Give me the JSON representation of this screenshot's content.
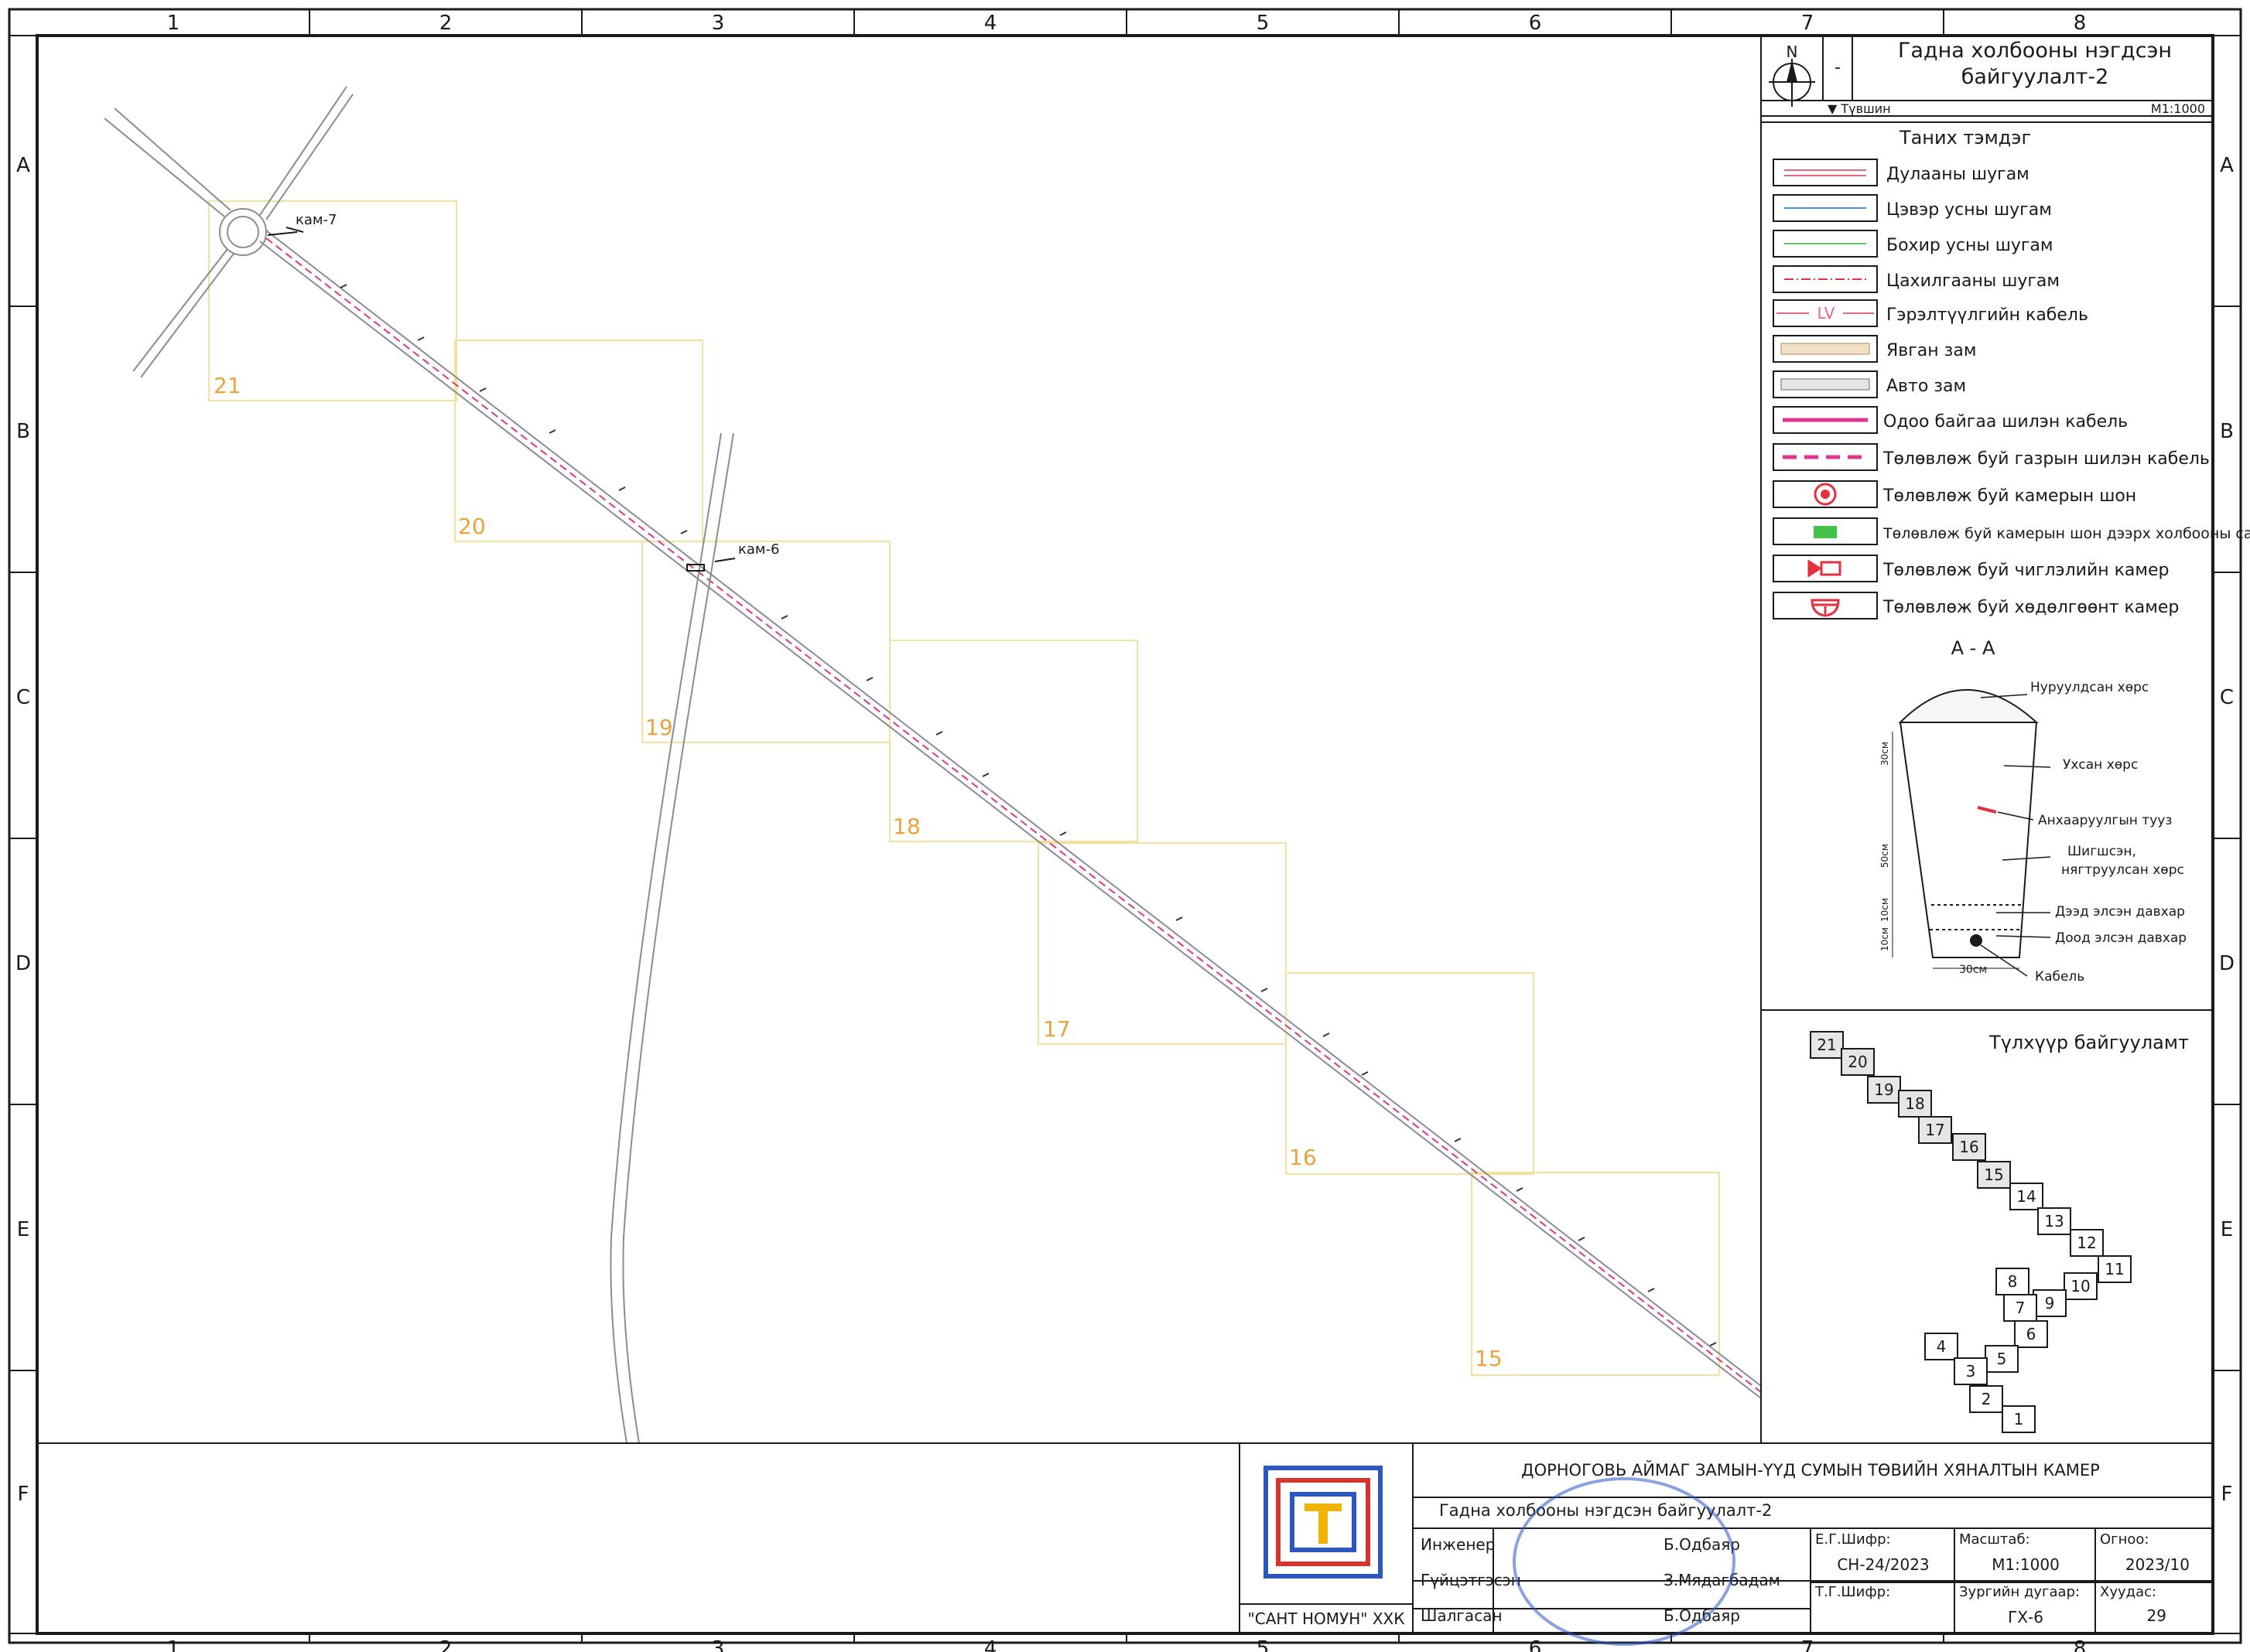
{
  "grid": {
    "columns": [
      "1",
      "2",
      "3",
      "4",
      "5",
      "6",
      "7",
      "8"
    ],
    "rows": [
      "A",
      "B",
      "C",
      "D",
      "E",
      "F"
    ]
  },
  "map": {
    "cam_labels": [
      "кам-7",
      "кам-6"
    ],
    "sheet_numbers": [
      "21",
      "20",
      "19",
      "18",
      "17",
      "16",
      "15"
    ]
  },
  "panel": {
    "north": "N",
    "dash": "-",
    "title_line1": "Гадна холбооны нэгдсэн",
    "title_line2": "байгуулалт-2",
    "level_label": "▼ Түвшин",
    "scale": "M1:1000",
    "legend_title": "Таних тэмдэг",
    "legend": [
      {
        "label": "Дулааны шугам",
        "symbol": "double-red-line"
      },
      {
        "label": "Цэвэр усны шугам",
        "symbol": "blue-line"
      },
      {
        "label": "Бохир усны шугам",
        "symbol": "green-line"
      },
      {
        "label": "Цахилгааны шугам",
        "symbol": "red-dash-dot-line"
      },
      {
        "label": "Гэрэлтүүлгийн кабель",
        "symbol": "lv-line",
        "inline": "LV"
      },
      {
        "label": "Явган зам",
        "symbol": "hatched-beige"
      },
      {
        "label": "Авто зам",
        "symbol": "hatched-gray"
      },
      {
        "label": "Одоо байгаа шилэн кабель",
        "symbol": "magenta-solid"
      },
      {
        "label": "Төлөвлөж буй газрын шилэн кабель",
        "symbol": "magenta-dashed"
      },
      {
        "label": "Төлөвлөж буй камерын шон",
        "symbol": "red-target-icon"
      },
      {
        "label": "Төлөвлөж буй камерын шон дээрх холбооны самбар",
        "symbol": "green-box-icon"
      },
      {
        "label": "Төлөвлөж буй чиглэлийн камер",
        "symbol": "bullet-camera-icon"
      },
      {
        "label": "Төлөвлөж буй хөдөлгөөнт камер",
        "symbol": "dome-camera-icon"
      }
    ],
    "section_title": "А  -  А",
    "section_labels": [
      "Нуруулдсан хөрс",
      "Ухсан хөрс",
      "Анхааруулгын тууз",
      "Шигшсэн,",
      "нягтруулсан хөрс",
      "Дээд элсэн давхар",
      "Доод элсэн давхар",
      "Кабель"
    ],
    "section_dims": [
      "30см",
      "50см",
      "10см",
      "10см",
      "30см"
    ],
    "key_title": "Түлхүүр байгууламт",
    "key_tiles": [
      "21",
      "20",
      "19",
      "18",
      "17",
      "16",
      "15",
      "14",
      "13",
      "12",
      "11",
      "10",
      "9",
      "8",
      "7",
      "6",
      "5",
      "4",
      "3",
      "2",
      "1"
    ]
  },
  "titleblock": {
    "project": "ДОРНОГОВЬ АЙМАГ ЗАМЫН-ҮҮД СУМЫН ТӨВИЙН ХЯНАЛТЫН КАМЕР",
    "drawing": "Гадна холбооны нэгдсэн байгуулалт-2",
    "company": "\"САНТ НОМУН\" ХХК",
    "roles": [
      {
        "role": "Инженер",
        "name": "Б.Одбаяр"
      },
      {
        "role": "Гүйцэтгэсэн",
        "name": "З.Мядагбадам"
      },
      {
        "role": "Шалгасан",
        "name": "Б.Одбаяр"
      }
    ],
    "eg_code_label": "Е.Г.Шифр:",
    "eg_code": "СН-24/2023",
    "tg_code_label": "Т.Г.Шифр:",
    "scale_label": "Масштаб:",
    "scale": "М1:1000",
    "date_label": "Огноо:",
    "date": "2023/10",
    "drawing_no_label": "Зургийн дугаар:",
    "drawing_no": "ГХ-6",
    "page_label": "Хуудас:",
    "page": "29"
  },
  "colors": {
    "frame": "#1a1a1a",
    "road": "#8c8c8c",
    "cable": "#e2338f",
    "sheet_box": "#f3e39a",
    "sheet_number": "#e9a338",
    "stamp": "#2a56c6",
    "logo_blue": "#2a56c6",
    "logo_red": "#d9342b",
    "logo_yellow": "#f0b400"
  }
}
